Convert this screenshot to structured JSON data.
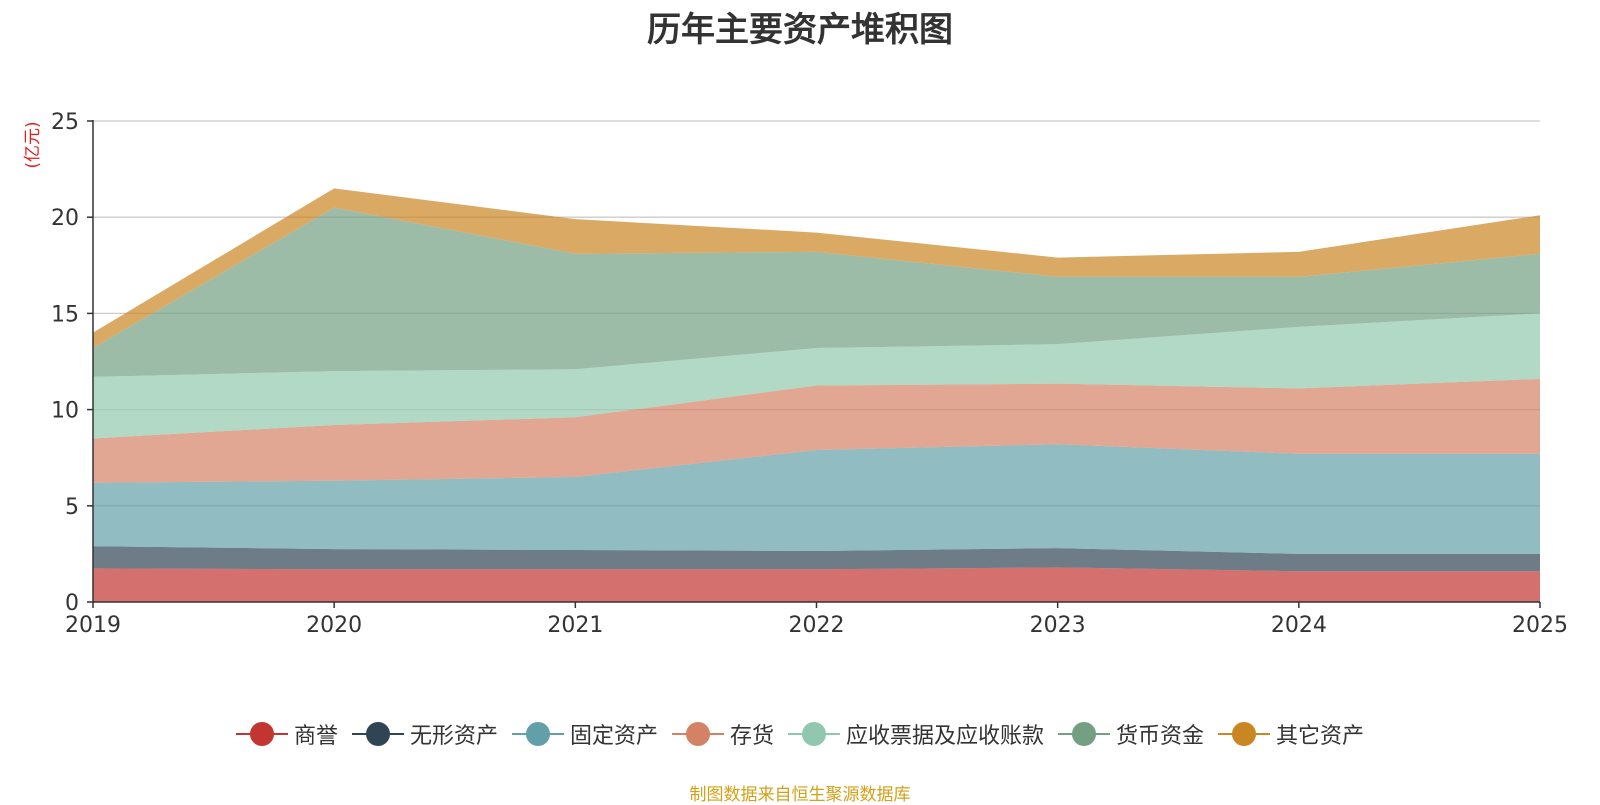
{
  "chart_data": {
    "type": "area",
    "stacked": true,
    "title": "历年主要资产堆积图",
    "ylabel": "(亿元)",
    "xlabel": "",
    "ylim": [
      0,
      25
    ],
    "yticks": [
      0,
      5,
      10,
      15,
      20,
      25
    ],
    "categories": [
      "2019",
      "2020",
      "2021",
      "2022",
      "2023",
      "2024",
      "2025"
    ],
    "series": [
      {
        "name": "商誉",
        "color": "#c23531",
        "values": [
          1.75,
          1.7,
          1.7,
          1.7,
          1.8,
          1.6,
          1.6
        ]
      },
      {
        "name": "无形资产",
        "color": "#2f4554",
        "values": [
          1.15,
          1.05,
          1.0,
          0.95,
          1.0,
          0.9,
          0.9
        ]
      },
      {
        "name": "固定资产",
        "color": "#61a0a8",
        "values": [
          3.3,
          3.55,
          3.8,
          5.25,
          5.4,
          5.2,
          5.2
        ]
      },
      {
        "name": "存货",
        "color": "#d48265",
        "values": [
          2.3,
          2.9,
          3.1,
          3.35,
          3.15,
          3.4,
          3.9
        ]
      },
      {
        "name": "应收票据及应收账款",
        "color": "#91c7ae",
        "values": [
          3.2,
          2.8,
          2.5,
          1.95,
          2.05,
          3.2,
          3.4
        ]
      },
      {
        "name": "货币资金",
        "color": "#749f83",
        "values": [
          1.5,
          8.5,
          6.0,
          5.0,
          3.5,
          2.6,
          3.1
        ]
      },
      {
        "name": "其它资产",
        "color": "#ca8622",
        "values": [
          0.8,
          1.0,
          1.8,
          1.0,
          1.0,
          1.3,
          2.0
        ]
      }
    ],
    "grid": true,
    "legend_position": "bottom"
  },
  "source_text": "制图数据来自恒生聚源数据库",
  "source_color": "#d4a017"
}
